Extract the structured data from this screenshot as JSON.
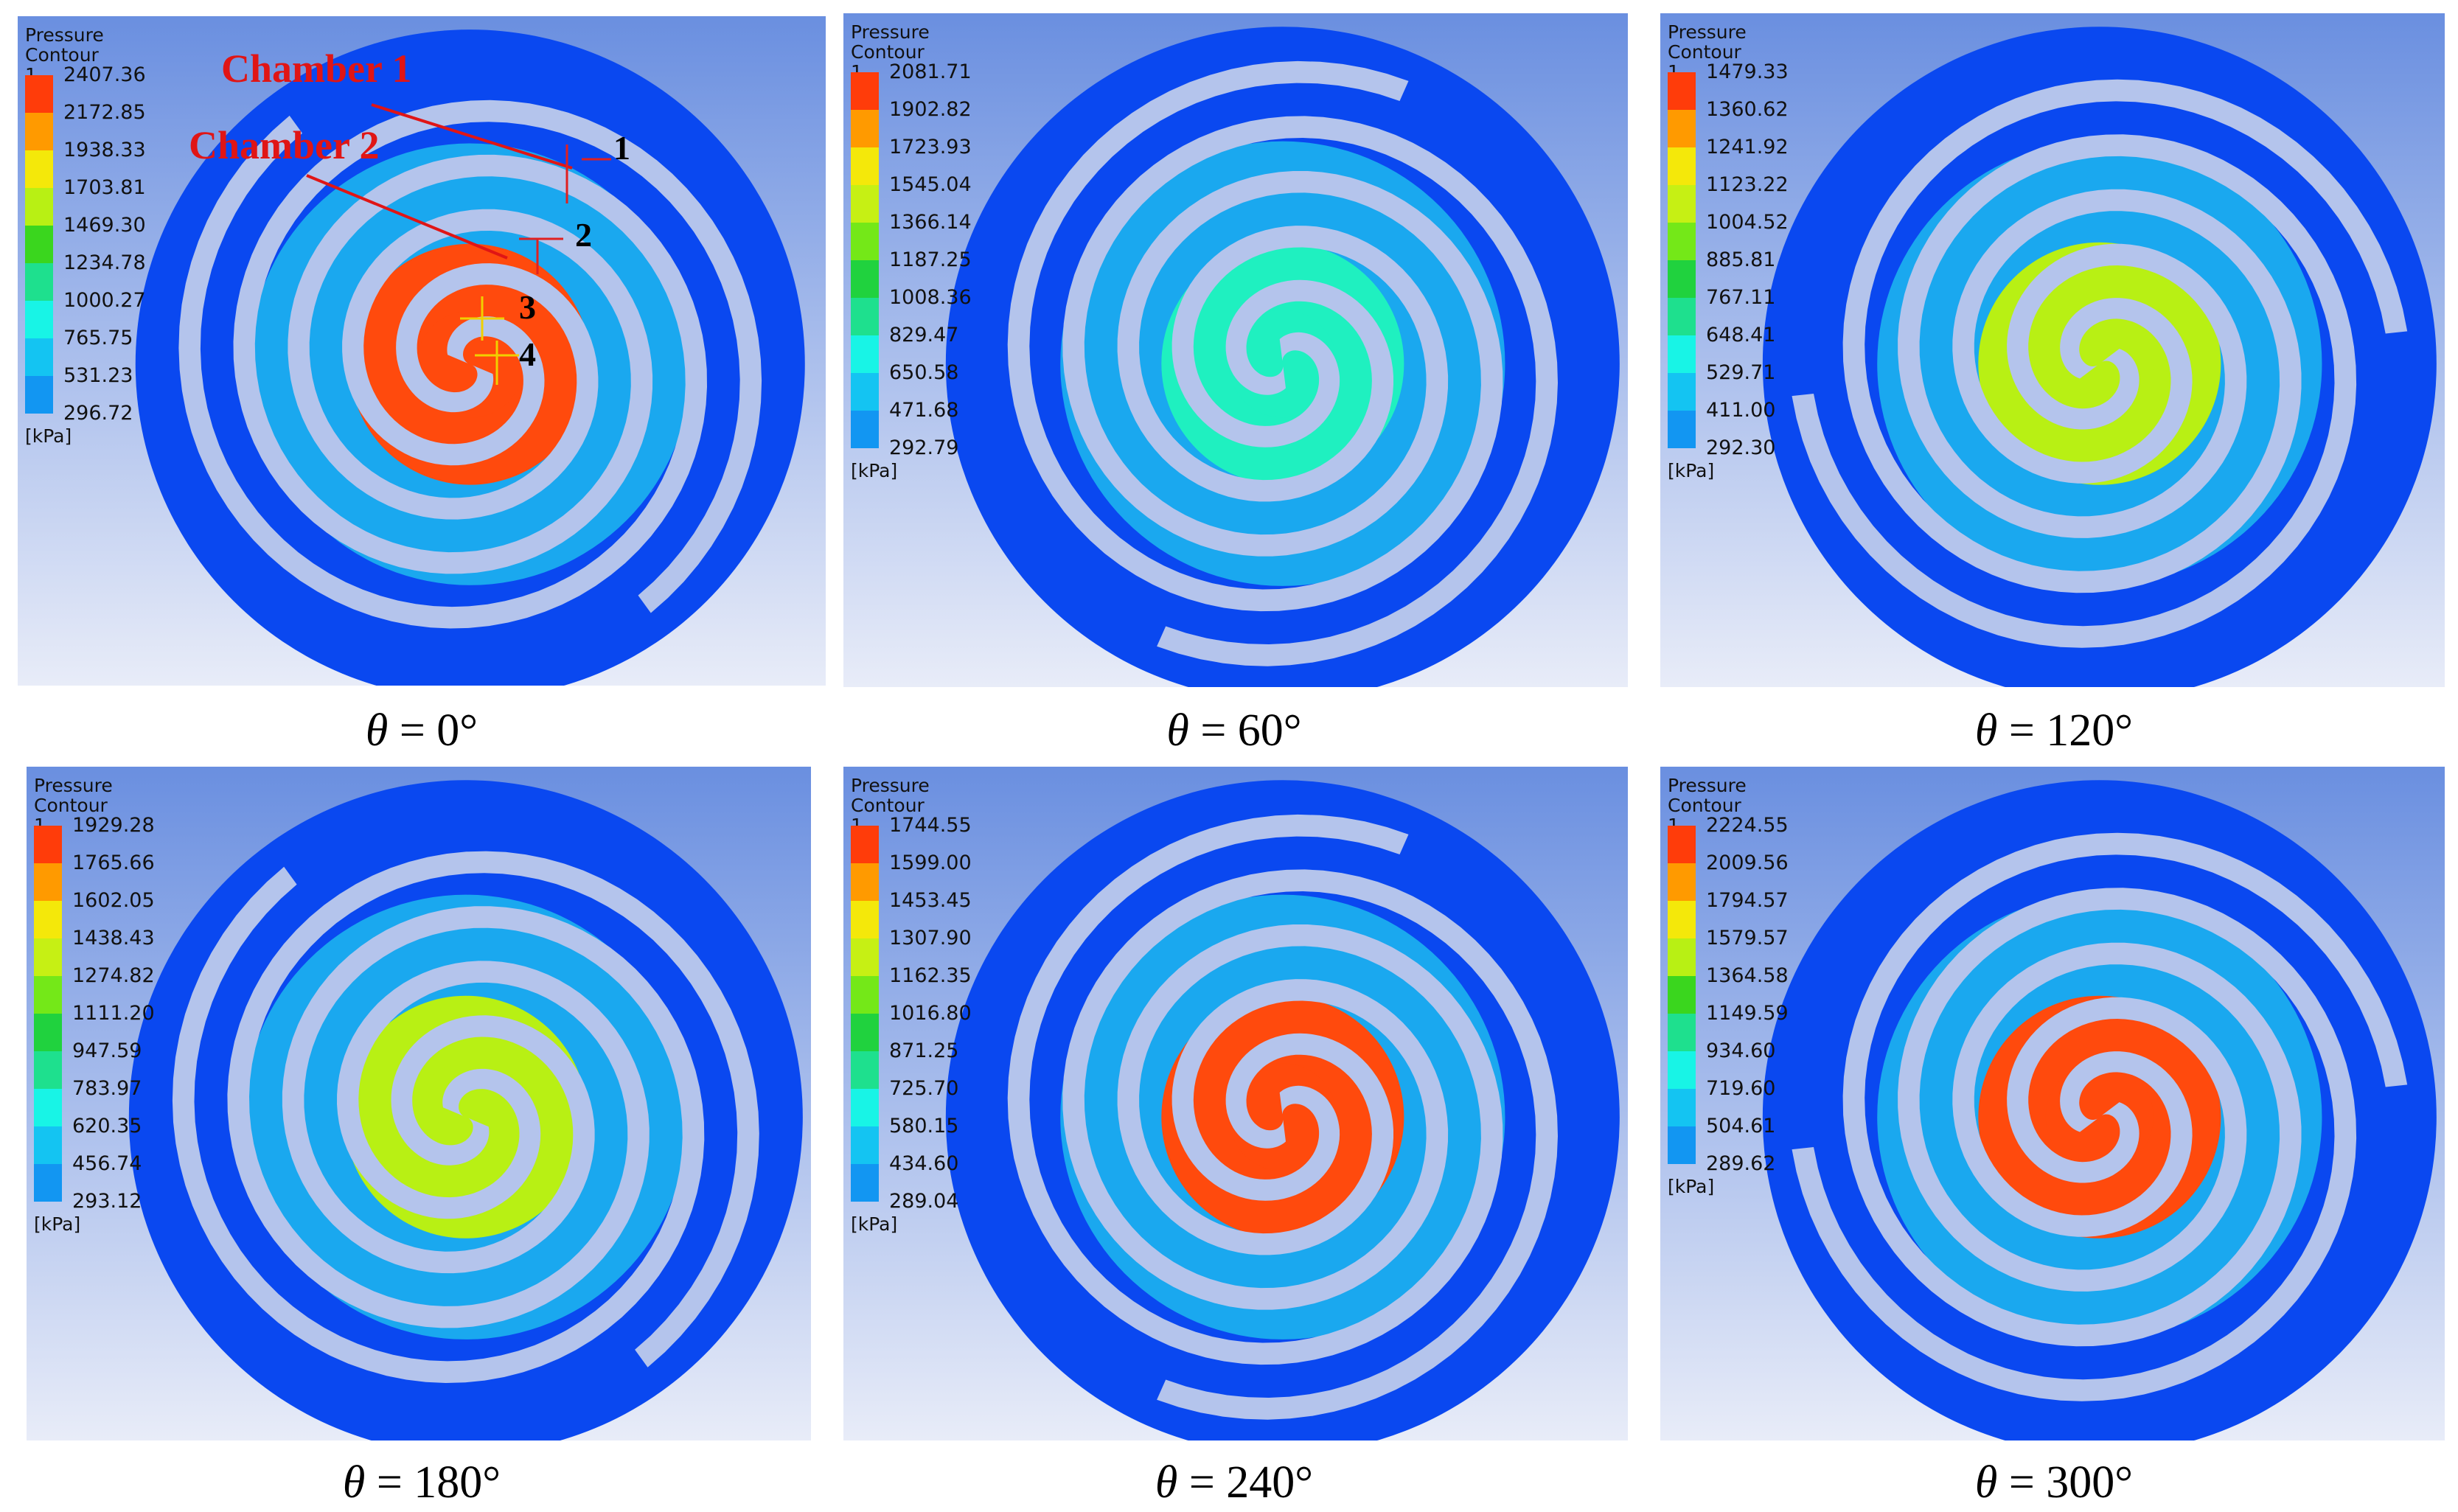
{
  "panels": [
    {
      "legend": {
        "title": [
          "Pressure",
          "Contour 1"
        ],
        "values": [
          "2407.36",
          "2172.85",
          "1938.33",
          "1703.81",
          "1469.30",
          "1234.78",
          "1000.27",
          "765.75",
          "531.23",
          "296.72"
        ],
        "unit": "[kPa]"
      },
      "caption": {
        "symbol": "θ",
        "eq": " = 0°"
      },
      "annotations": {
        "chambers": [
          "Chamber 1",
          "Chamber 2"
        ],
        "points": [
          "1",
          "2",
          "3",
          "4"
        ]
      },
      "fill": {
        "outer": "#0a48f0",
        "mid": "#1aa8ef",
        "inner": "#ff4a0d"
      }
    },
    {
      "legend": {
        "title": [
          "Pressure",
          "Contour 1"
        ],
        "values": [
          "2081.71",
          "1902.82",
          "1723.93",
          "1545.04",
          "1366.14",
          "1187.25",
          "1008.36",
          "829.47",
          "650.58",
          "471.68",
          "292.79"
        ],
        "unit": "[kPa]"
      },
      "caption": {
        "symbol": "θ",
        "eq": " = 60°"
      },
      "fill": {
        "outer": "#0a48f0",
        "mid": "#1aa8ef",
        "inner": "#1ff0c0"
      }
    },
    {
      "legend": {
        "title": [
          "Pressure",
          "Contour 1"
        ],
        "values": [
          "1479.33",
          "1360.62",
          "1241.92",
          "1123.22",
          "1004.52",
          "885.81",
          "767.11",
          "648.41",
          "529.71",
          "411.00",
          "292.30"
        ],
        "unit": "[kPa]"
      },
      "caption": {
        "symbol": "θ",
        "eq": " = 120°"
      },
      "fill": {
        "outer": "#0a48f0",
        "mid": "#1aa8ef",
        "inner": "#b8f014"
      }
    },
    {
      "legend": {
        "title": [
          "Pressure",
          "Contour 1"
        ],
        "values": [
          "1929.28",
          "1765.66",
          "1602.05",
          "1438.43",
          "1274.82",
          "1111.20",
          "947.59",
          "783.97",
          "620.35",
          "456.74",
          "293.12"
        ],
        "unit": "[kPa]"
      },
      "caption": {
        "symbol": "θ",
        "eq": " = 180°"
      },
      "fill": {
        "outer": "#0a48f0",
        "mid": "#1aa8ef",
        "inner": "#b8f014"
      }
    },
    {
      "legend": {
        "title": [
          "Pressure",
          "Contour 1"
        ],
        "values": [
          "1744.55",
          "1599.00",
          "1453.45",
          "1307.90",
          "1162.35",
          "1016.80",
          "871.25",
          "725.70",
          "580.15",
          "434.60",
          "289.04"
        ],
        "unit": "[kPa]"
      },
      "caption": {
        "symbol": "θ",
        "eq": " = 240°"
      },
      "fill": {
        "outer": "#0a48f0",
        "mid": "#1aa8ef",
        "inner": "#ff4a0d"
      }
    },
    {
      "legend": {
        "title": [
          "Pressure",
          "Contour 1"
        ],
        "values": [
          "2224.55",
          "2009.56",
          "1794.57",
          "1579.57",
          "1364.58",
          "1149.59",
          "934.60",
          "719.60",
          "504.61",
          "289.62"
        ],
        "unit": "[kPa]"
      },
      "caption": {
        "symbol": "θ",
        "eq": " = 300°"
      },
      "fill": {
        "outer": "#0a48f0",
        "mid": "#1aa8ef",
        "inner": "#ff4a0d"
      }
    }
  ],
  "legend_colors_10": [
    "#ff3c0a",
    "#ff9a00",
    "#f4e80a",
    "#b8f014",
    "#3ad61e",
    "#1ee08e",
    "#18f4e6",
    "#14c4f2",
    "#1296f2",
    "#0a48f0"
  ],
  "legend_colors_11": [
    "#ff3c0a",
    "#ff9a00",
    "#f4e80a",
    "#c6f014",
    "#74e818",
    "#20d23e",
    "#1ee08e",
    "#18f4e6",
    "#14c4f2",
    "#1296f2",
    "#0a48f0"
  ],
  "scroll_color": "#b4c4ec"
}
